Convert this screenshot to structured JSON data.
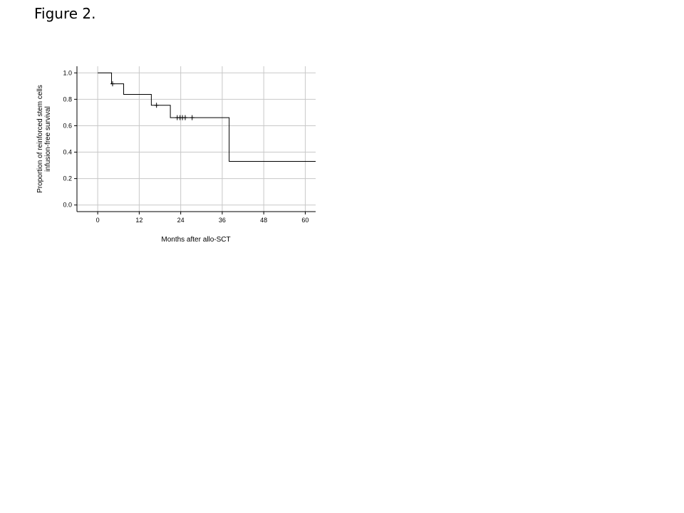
{
  "figure_label": "Figure 2.",
  "chart_data": {
    "type": "line",
    "subtype": "kaplan-meier step",
    "title": "",
    "xlabel": "Months after allo-SCT",
    "ylabel_lines": [
      "Proportion of reinforced stem cells",
      "infusion-free survival"
    ],
    "xlim": [
      -6,
      63
    ],
    "ylim": [
      -0.05,
      1.05
    ],
    "x_ticks": [
      0,
      12,
      24,
      36,
      48,
      60
    ],
    "x_tick_labels": [
      "0",
      "12",
      "24",
      "36",
      "48",
      "60"
    ],
    "y_ticks": [
      0.0,
      0.2,
      0.4,
      0.6,
      0.8,
      1.0
    ],
    "y_tick_labels": [
      "0.0",
      "0.2",
      "0.4",
      "0.6",
      "0.8",
      "1.0"
    ],
    "grid": true,
    "series": [
      {
        "color": "#000000",
        "steps": [
          {
            "x": 0,
            "y": 1.0
          },
          {
            "x": 4,
            "y": 0.917
          },
          {
            "x": 7.5,
            "y": 0.837
          },
          {
            "x": 15.5,
            "y": 0.755
          },
          {
            "x": 21,
            "y": 0.661
          },
          {
            "x": 38,
            "y": 0.33
          },
          {
            "x": 63,
            "y": 0.33
          }
        ],
        "censored": [
          {
            "x": 4.3,
            "y": 0.917
          },
          {
            "x": 17,
            "y": 0.755
          },
          {
            "x": 23,
            "y": 0.661
          },
          {
            "x": 23.8,
            "y": 0.661
          },
          {
            "x": 24.5,
            "y": 0.661
          },
          {
            "x": 25.3,
            "y": 0.661
          },
          {
            "x": 27.3,
            "y": 0.661
          }
        ]
      }
    ]
  }
}
